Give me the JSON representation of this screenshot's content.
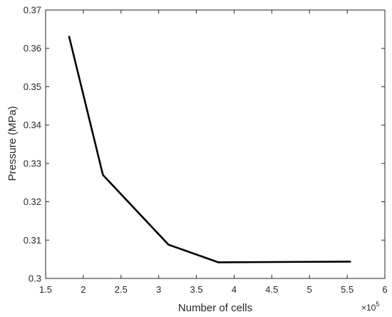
{
  "chart_data": {
    "type": "line",
    "xlabel": "Number of cells",
    "ylabel": "Pressure (MPa)",
    "x_multiplier": "×10",
    "x_exponent": "5",
    "xlim": [
      1.5,
      6
    ],
    "ylim": [
      0.3,
      0.37
    ],
    "xticks": [
      "1.5",
      "2",
      "2.5",
      "3",
      "3.5",
      "4",
      "4.5",
      "5",
      "5.5",
      "6"
    ],
    "yticks": [
      "0.3",
      "0.31",
      "0.32",
      "0.33",
      "0.34",
      "0.35",
      "0.36",
      "0.37"
    ],
    "series": [
      {
        "color": "#000000",
        "x": [
          1.81,
          2.26,
          3.13,
          3.79,
          5.55
        ],
        "y": [
          0.3632,
          0.327,
          0.3088,
          0.3042,
          0.3044
        ]
      }
    ],
    "grid": false,
    "box": true
  }
}
